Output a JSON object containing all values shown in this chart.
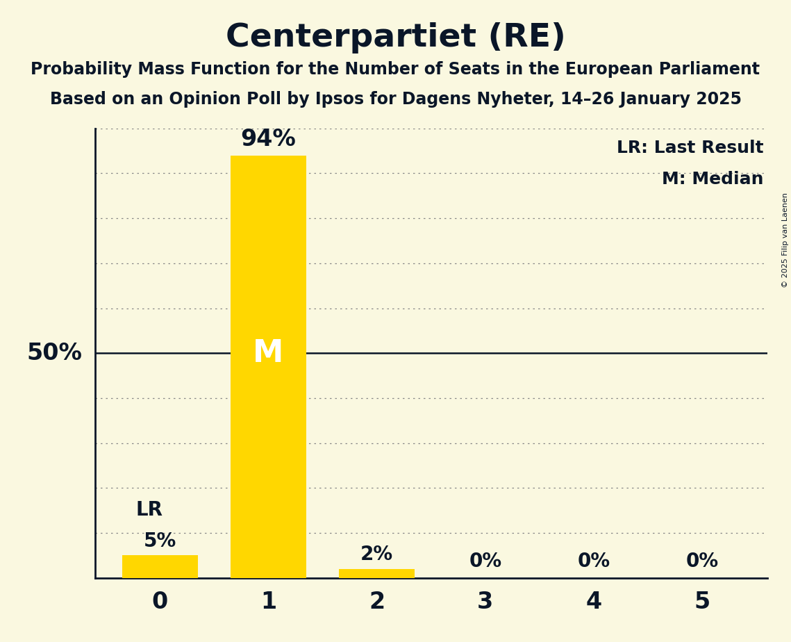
{
  "title": "Centerpartiet (RE)",
  "subtitle1": "Probability Mass Function for the Number of Seats in the European Parliament",
  "subtitle2": "Based on an Opinion Poll by Ipsos for Dagens Nyheter, 14–26 January 2025",
  "copyright": "© 2025 Filip van Laenen",
  "categories": [
    0,
    1,
    2,
    3,
    4,
    5
  ],
  "values": [
    5,
    94,
    2,
    0,
    0,
    0
  ],
  "bar_color": "#FFD700",
  "background_color": "#FAF8E0",
  "text_color": "#0A1628",
  "grid_color": "#888888",
  "median_bar": 1,
  "lr_bar": 0,
  "lr_label": "LR",
  "median_label": "M",
  "legend_lr": "LR: Last Result",
  "legend_m": "M: Median",
  "ylabel_50": "50%",
  "ylim": [
    0,
    100
  ],
  "figsize": [
    11.39,
    9.24
  ],
  "dpi": 100
}
